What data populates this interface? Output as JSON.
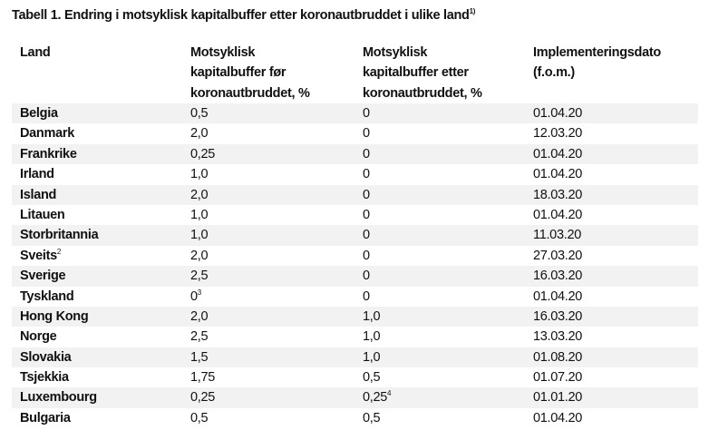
{
  "title": {
    "text": "Tabell 1. Endring i motsyklisk kapitalbuffer etter koronautbruddet i ulike land",
    "note": "1)"
  },
  "headers": {
    "land": [
      "Land"
    ],
    "before": [
      "Motsyklisk",
      "kapitalbuffer før",
      "koronautbruddet, %"
    ],
    "after": [
      "Motsyklisk",
      "kapitalbuffer etter",
      "koronautbruddet, %"
    ],
    "date": [
      "Implementeringsdato",
      "(f.o.m.)"
    ]
  },
  "rows": [
    {
      "land": "Belgia",
      "before": "0,5",
      "after": "0",
      "date": "01.04.20"
    },
    {
      "land": "Danmark",
      "before": "2,0",
      "after": "0",
      "date": "12.03.20"
    },
    {
      "land": "Frankrike",
      "before": "0,25",
      "after": "0",
      "date": "01.04.20"
    },
    {
      "land": "Irland",
      "before": "1,0",
      "after": "0",
      "date": "01.04.20"
    },
    {
      "land": "Island",
      "before": "2,0",
      "after": "0",
      "date": "18.03.20"
    },
    {
      "land": "Litauen",
      "before": "1,0",
      "after": "0",
      "date": "01.04.20"
    },
    {
      "land": "Storbritannia",
      "before": "1,0",
      "after": "0",
      "date": "11.03.20"
    },
    {
      "land": "Sveits",
      "land_note": "2",
      "before": "2,0",
      "after": "0",
      "date": "27.03.20"
    },
    {
      "land": "Sverige",
      "before": "2,5",
      "after": "0",
      "date": "16.03.20"
    },
    {
      "land": "Tyskland",
      "before": "0",
      "before_note": "3",
      "after": "0",
      "date": "01.04.20"
    },
    {
      "land": "Hong Kong",
      "before": "2,0",
      "after": "1,0",
      "date": "16.03.20"
    },
    {
      "land": "Norge",
      "before": "2,5",
      "after": "1,0",
      "date": "13.03.20"
    },
    {
      "land": "Slovakia",
      "before": "1,5",
      "after": "1,0",
      "date": "01.08.20"
    },
    {
      "land": "Tsjekkia",
      "before": "1,75",
      "after": "0,5",
      "date": "01.07.20"
    },
    {
      "land": "Luxembourg",
      "before": "0,25",
      "after": "0,25",
      "after_note": "4",
      "date": "01.01.20"
    },
    {
      "land": "Bulgaria",
      "before": "0,5",
      "after": "0,5",
      "date": "01.04.20"
    }
  ],
  "colors": {
    "alt_row": "#f2f2f2"
  }
}
